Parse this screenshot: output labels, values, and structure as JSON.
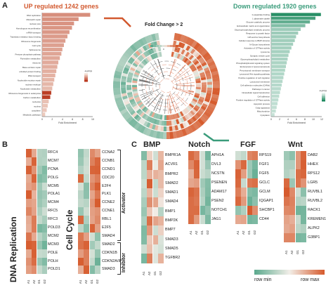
{
  "panel_A": {
    "letter": "A",
    "up_title": "UP regulated 1242 genes",
    "down_title": "Down regulated 1920 genes",
    "center_label": "Fold Change > 2",
    "up_axis_ticks": [
      "0",
      "2",
      "4",
      "6",
      "8",
      "10"
    ],
    "up_axis_label": "Fold Enrichment",
    "down_axis_ticks": [
      "0",
      "2",
      "4",
      "6",
      "8",
      "10",
      "12"
    ],
    "down_axis_label": "Fold Enrichment",
    "up_terms": [
      "DNA replication",
      "Mismatch repair",
      "nuclear pore",
      "Homologous recombination",
      "mRNA transport",
      "Translation initiation factor binding",
      "Ribosome biogenesis",
      "Cell cycle",
      "Spliceosome",
      "Pentose phosphate pathway",
      "Pyrimidine metabolism",
      "ribosome",
      "Base excision repair",
      "unfolded protein binding",
      "RNA transport",
      "Nucleotide excision repair",
      "nuclear envelope",
      "Nucleotide metabolism",
      "Ribosome biogenesis in eukaryotes",
      "Carbon metabolism",
      "nucleolus",
      "nucleus",
      "cytoplasm",
      "Metabolic pathways"
    ],
    "up_values": [
      9.5,
      7.2,
      6.3,
      5.9,
      5.4,
      5.0,
      4.6,
      4.3,
      4.0,
      3.8,
      3.5,
      3.2,
      3.0,
      2.8,
      2.6,
      2.4,
      2.2,
      2.0,
      1.8,
      1.6,
      1.3,
      1.1,
      0.9,
      0.6
    ],
    "down_terms": [
      "G-aspartate binding",
      "L-glutamate uptake",
      "Glucose catabolic process",
      "Extracellular matrix and organization",
      "Glycerophospholipid metabolic process",
      "Response to growth factor",
      "GPI-anchor biosynthesis",
      "Cellular response to BMP stimulus",
      "N-Glycan biosynthesis",
      "Activation of GTPase activity",
      "Lysosome",
      "Synaptic vesicle cycle",
      "Glycerophospholipid metabolism",
      "Phosphatidylinositol signaling system",
      "Endocytosis in lysosome/vacuole",
      "Peroxisomal membrane transport",
      "Lysosomal Wnt signaling pathway",
      "Positive regulation of cell migration",
      "Lysosomal membrane",
      "Cell adhesion molecules (CAMs)",
      "Pathways in cancer",
      "Intracellular signal transduction",
      "Cell adhesion",
      "Positive regulation of GTPase activity",
      "Apoptotic process",
      "Golgi apparatus",
      "Mitochondrion",
      "Cytoplasm"
    ],
    "down_values": [
      11.8,
      10.5,
      9.2,
      8.1,
      7.0,
      6.4,
      5.9,
      5.6,
      5.2,
      4.8,
      4.4,
      4.1,
      3.9,
      3.7,
      3.5,
      3.3,
      3.1,
      2.9,
      2.7,
      2.5,
      2.3,
      2.1,
      1.9,
      1.7,
      1.5,
      1.3,
      1.1,
      0.8
    ],
    "legend_up_title": "-log10(p)",
    "legend_down_title": "-log10(p)",
    "legend_circle_values": [
      "-1",
      "0",
      "1"
    ]
  },
  "panel_B": {
    "letter": "B",
    "dna_title": "DNA Replication",
    "cc_title": "Cell Cycle",
    "dna_genes": [
      "RFC4",
      "MCM7",
      "PCNA",
      "POLG",
      "MCM5",
      "POLA1",
      "MCM4",
      "RFC5",
      "RFC3",
      "POLD3",
      "MCM2",
      "MCM3",
      "POLE",
      "POLH",
      "POLD1"
    ],
    "cc_genes": [
      "CCNA2",
      "CCNB1",
      "CCND1",
      "CDC20",
      "E2F4",
      "PLK1",
      "CCNE2",
      "CCNE1",
      "RBL1",
      "E2F5",
      "SMAD4",
      "SMAD2",
      "CDKN1B",
      "CDKN2A/IP",
      "SMAD3"
    ],
    "columns": [
      "A1",
      "A2",
      "G1",
      "G2"
    ],
    "activator_label": "Activator",
    "inhibitor_label": "Inhibitor"
  },
  "panel_C": {
    "letter": "C",
    "bmp_title": "BMP",
    "notch_title": "Notch",
    "fgf_title": "FGF",
    "wnt_title": "Wnt",
    "bmp_genes": [
      "BMPR1A",
      "ACVR1",
      "BMPR2",
      "SMAD2",
      "SMAD1",
      "SMAD4",
      "BMP1",
      "BMP2K",
      "BMP7",
      "SMAD3",
      "SMAD5",
      "TGFBR2"
    ],
    "notch_genes": [
      "APH1A",
      "DVL3",
      "NCSTN",
      "PSENEN",
      "ADAM17",
      "PSEN2",
      "NOTCH1",
      "JAG1"
    ],
    "fgf_genes": [
      "RPS19",
      "FGF1",
      "FGF5",
      "GCLC",
      "GCLM",
      "IQGAP1",
      "SHCBP1",
      "CD44"
    ],
    "wnt_genes": [
      "DAB2",
      "HHEX",
      "RPS12",
      "LGR5",
      "RUVBL1",
      "RUVBL2",
      "RACK1",
      "KREMEN1",
      "ALPK2",
      "G3BP1"
    ],
    "columns": [
      "A1",
      "A2",
      "G1",
      "G2"
    ]
  },
  "legend": {
    "min_label": "row min",
    "max_label": "row max"
  },
  "colors": {
    "up": "#d2592f",
    "down": "#3a9c7b",
    "low": "#5aa98d",
    "mid": "#f2eee8",
    "high": "#d65a2c"
  }
}
